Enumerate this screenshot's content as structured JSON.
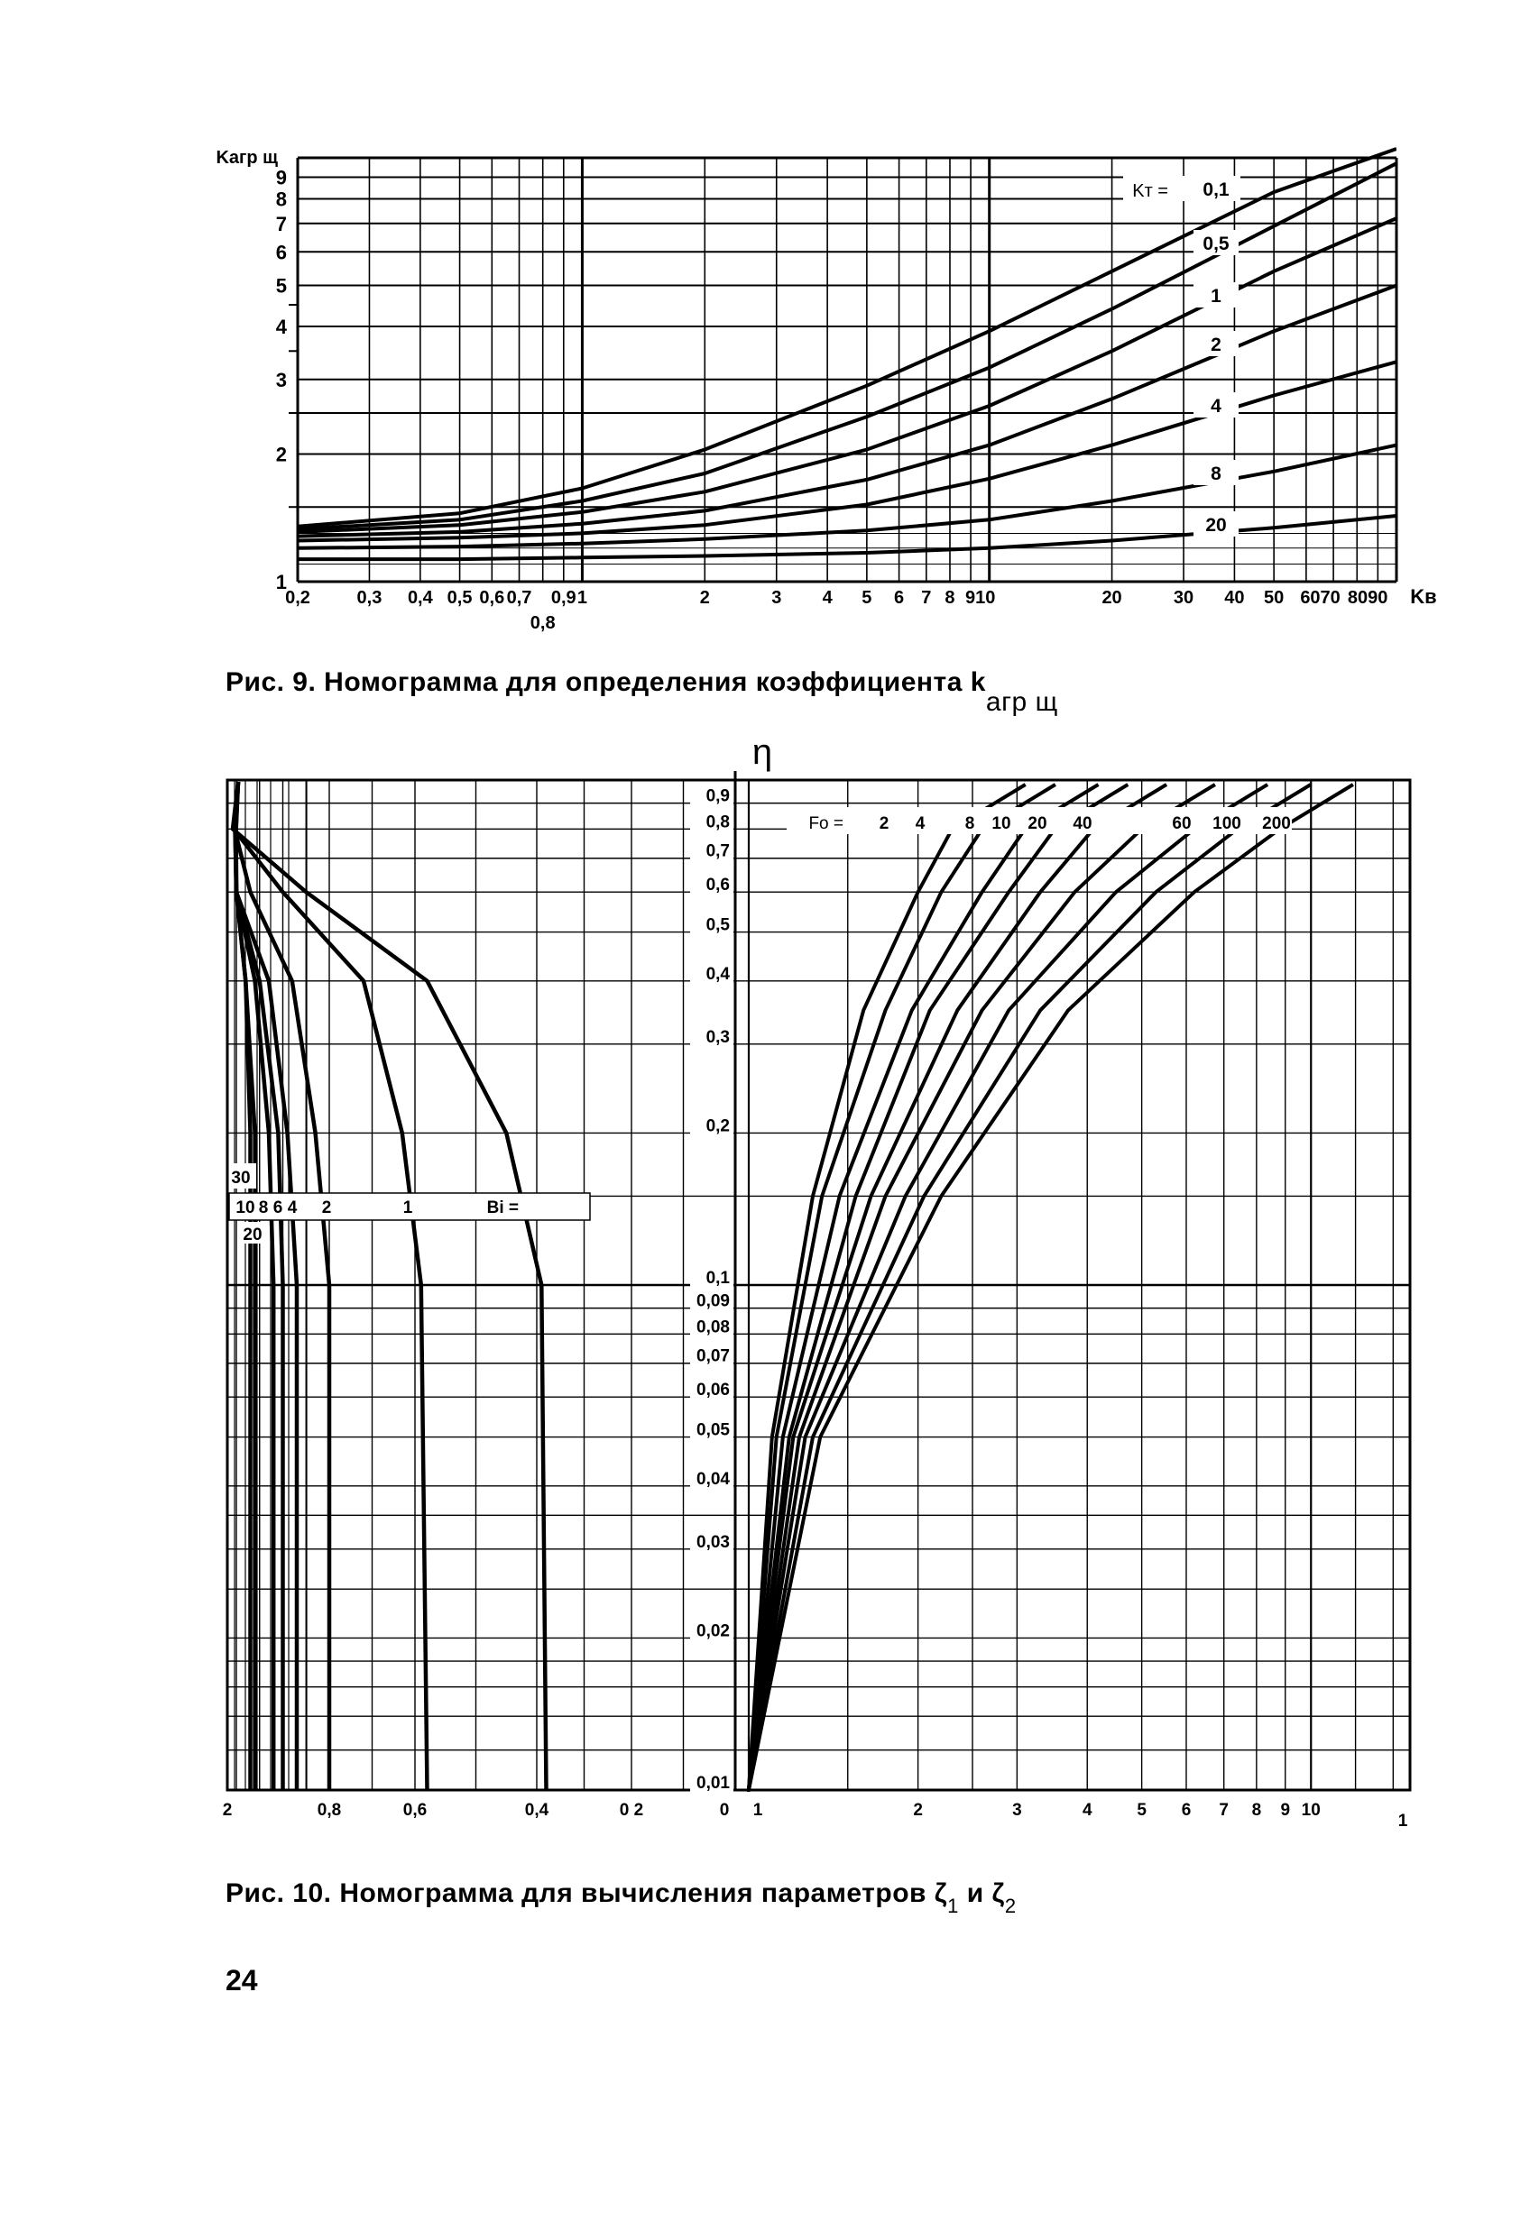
{
  "page": {
    "number": "24"
  },
  "figure9": {
    "caption_prefix": "Рис. 9.",
    "caption_text": "Номограмма для определения коэффициента k",
    "caption_sub": "агр щ"
  },
  "figure10": {
    "caption_prefix": "Рис. 10.",
    "caption_text": "Номограмма для вычисления параметров ζ",
    "caption_sub1": "1",
    "caption_mid": " и ζ",
    "caption_sub2": "2"
  },
  "chart_data": [
    {
      "type": "line",
      "xscale": "log",
      "yscale": "log",
      "xlim": [
        0.2,
        100
      ],
      "ylim": [
        1,
        10
      ],
      "ylabel": "Kагр щ",
      "xlabel": "Kв",
      "x_ticks": [
        "0,2",
        "0,3",
        "0,4",
        "0,5",
        "0,6",
        "0,7",
        "0,8",
        "0,9",
        "1",
        "2",
        "3",
        "4",
        "5",
        "6",
        "7",
        "8",
        "9",
        "10",
        "20",
        "30",
        "40",
        "50",
        "60",
        "70",
        "80",
        "90"
      ],
      "x_tick_label_text": [
        "0,2",
        "0,3",
        "0,4",
        "0,5",
        "0,6",
        "0,7",
        "0,9",
        "1",
        "0,8",
        "2",
        "3",
        "4",
        "5",
        "6",
        "7",
        "8",
        "910",
        "20",
        "30",
        "40",
        "50",
        "6070",
        "8090"
      ],
      "y_tick_labels": [
        "1",
        "2",
        "3",
        "4",
        "5",
        "6",
        "7",
        "8",
        "9"
      ],
      "legend_title": "Kт =",
      "series": [
        {
          "name": "0,1",
          "x": [
            0.2,
            0.5,
            1,
            2,
            5,
            10,
            20,
            50,
            100
          ],
          "y": [
            1.35,
            1.45,
            1.66,
            2.05,
            2.9,
            3.9,
            5.4,
            8.3,
            11.5
          ]
        },
        {
          "name": "0,5",
          "x": [
            0.2,
            0.5,
            1,
            2,
            5,
            10,
            20,
            50,
            100
          ],
          "y": [
            1.33,
            1.4,
            1.55,
            1.8,
            2.45,
            3.2,
            4.4,
            6.9,
            9.7
          ]
        },
        {
          "name": "1",
          "x": [
            0.2,
            0.5,
            1,
            2,
            5,
            10,
            20,
            50,
            100
          ],
          "y": [
            1.31,
            1.36,
            1.46,
            1.63,
            2.05,
            2.6,
            3.5,
            5.4,
            7.2
          ]
        },
        {
          "name": "2",
          "x": [
            0.2,
            0.5,
            1,
            2,
            5,
            10,
            20,
            50,
            100
          ],
          "y": [
            1.28,
            1.31,
            1.37,
            1.47,
            1.74,
            2.1,
            2.7,
            3.9,
            5.0
          ]
        },
        {
          "name": "4",
          "x": [
            0.2,
            0.5,
            1,
            2,
            5,
            10,
            20,
            50,
            100
          ],
          "y": [
            1.25,
            1.27,
            1.3,
            1.36,
            1.52,
            1.75,
            2.1,
            2.75,
            3.3
          ]
        },
        {
          "name": "8",
          "x": [
            0.2,
            0.5,
            1,
            2,
            5,
            10,
            20,
            50,
            100
          ],
          "y": [
            1.2,
            1.21,
            1.23,
            1.26,
            1.32,
            1.4,
            1.55,
            1.82,
            2.1
          ]
        },
        {
          "name": "20",
          "x": [
            0.2,
            0.5,
            1,
            2,
            5,
            10,
            20,
            50,
            100
          ],
          "y": [
            1.13,
            1.13,
            1.14,
            1.15,
            1.17,
            1.2,
            1.25,
            1.34,
            1.43
          ]
        }
      ]
    },
    {
      "type": "line",
      "yscale": "log",
      "ylim": [
        0.01,
        1
      ],
      "ylabel": "η",
      "y_tick_labels": [
        "0,9",
        "0,8",
        "0,7",
        "0,6",
        "0,5",
        "0,4",
        "0,3",
        "0,2",
        "0,1",
        "0,09",
        "0,08",
        "0,07",
        "0,06",
        "0,05",
        "0,04",
        "0,03",
        "0,02",
        "0,01"
      ],
      "left_panel": {
        "xlim": [
          2,
          0
        ],
        "x_tick_labels": [
          "2",
          "0,8",
          "0,6",
          "0,4",
          "0 2",
          "0"
        ],
        "legend_title": "Bi =",
        "legend_labels_row": [
          "10",
          "8",
          "6",
          "4",
          "2",
          "1"
        ],
        "legend_labels_extra": [
          "30",
          "20"
        ],
        "series": [
          {
            "name": "1",
            "x": [
              0.38,
              0.39,
              0.45,
              0.58,
              0.85,
              1.4
            ],
            "y": [
              0.01,
              0.1,
              0.2,
              0.4,
              0.6,
              0.8
            ]
          },
          {
            "name": "2",
            "x": [
              0.58,
              0.59,
              0.63,
              0.72,
              0.9,
              1.3
            ],
            "y": [
              0.01,
              0.1,
              0.2,
              0.4,
              0.6,
              0.8
            ]
          },
          {
            "name": "4",
            "x": [
              0.8,
              0.8,
              0.83,
              0.88,
              0.97,
              1.2
            ],
            "y": [
              0.01,
              0.1,
              0.2,
              0.4,
              0.6,
              0.8
            ]
          },
          {
            "name": "6",
            "x": [
              0.87,
              0.87,
              0.89,
              0.93,
              1.0,
              1.15
            ],
            "y": [
              0.01,
              0.1,
              0.2,
              0.4,
              0.6,
              0.8
            ]
          },
          {
            "name": "8",
            "x": [
              0.9,
              0.9,
              0.91,
              0.95,
              1.0,
              1.12
            ],
            "y": [
              0.01,
              0.1,
              0.2,
              0.4,
              0.6,
              0.8
            ]
          },
          {
            "name": "10",
            "x": [
              0.92,
              0.92,
              0.93,
              0.96,
              1.0,
              1.1
            ],
            "y": [
              0.01,
              0.1,
              0.2,
              0.4,
              0.6,
              0.8
            ]
          },
          {
            "name": "20",
            "x": [
              0.96,
              0.96,
              0.96,
              0.98,
              1.0,
              1.05
            ],
            "y": [
              0.01,
              0.1,
              0.2,
              0.4,
              0.6,
              0.8
            ]
          },
          {
            "name": "30",
            "x": [
              0.97,
              0.97,
              0.97,
              0.98,
              1.0,
              1.03
            ],
            "y": [
              0.01,
              0.1,
              0.2,
              0.4,
              0.6,
              0.8
            ]
          }
        ]
      },
      "right_panel": {
        "xscale": "log",
        "xlim": [
          1,
          10
        ],
        "x_tick_labels": [
          "0",
          "1",
          "2",
          "3",
          "4",
          "5",
          "6",
          "7",
          "8",
          "9",
          "10",
          "1"
        ],
        "legend_title": "Fo =",
        "legend_labels": [
          "2",
          "4",
          "8",
          "10",
          "20",
          "40",
          "60",
          "100",
          "200"
        ],
        "series": [
          {
            "name": "2",
            "x": [
              1,
              1.1,
              1.3,
              1.6,
              2,
              2.3
            ],
            "y": [
              0.01,
              0.05,
              0.15,
              0.35,
              0.6,
              0.8
            ]
          },
          {
            "name": "4",
            "x": [
              1,
              1.12,
              1.35,
              1.75,
              2.2,
              2.6
            ],
            "y": [
              0.01,
              0.05,
              0.15,
              0.35,
              0.6,
              0.8
            ]
          },
          {
            "name": "8",
            "x": [
              1,
              1.15,
              1.45,
              1.95,
              2.6,
              3.1
            ],
            "y": [
              0.01,
              0.05,
              0.15,
              0.35,
              0.6,
              0.8
            ]
          },
          {
            "name": "10",
            "x": [
              1,
              1.18,
              1.55,
              2.1,
              2.9,
              3.5
            ],
            "y": [
              0.01,
              0.05,
              0.15,
              0.35,
              0.6,
              0.8
            ]
          },
          {
            "name": "20",
            "x": [
              1,
              1.2,
              1.65,
              2.35,
              3.3,
              4.1
            ],
            "y": [
              0.01,
              0.05,
              0.15,
              0.35,
              0.6,
              0.8
            ]
          },
          {
            "name": "40",
            "x": [
              1,
              1.23,
              1.75,
              2.6,
              3.8,
              5.0
            ],
            "y": [
              0.01,
              0.05,
              0.15,
              0.35,
              0.6,
              0.8
            ]
          },
          {
            "name": "60",
            "x": [
              1,
              1.26,
              1.9,
              2.9,
              4.5,
              6.2
            ],
            "y": [
              0.01,
              0.05,
              0.15,
              0.35,
              0.6,
              0.8
            ]
          },
          {
            "name": "100",
            "x": [
              1,
              1.3,
              2.05,
              3.3,
              5.3,
              7.4
            ],
            "y": [
              0.01,
              0.05,
              0.15,
              0.35,
              0.6,
              0.8
            ]
          },
          {
            "name": "200",
            "x": [
              1,
              1.34,
              2.2,
              3.7,
              6.2,
              8.8
            ],
            "y": [
              0.01,
              0.05,
              0.15,
              0.35,
              0.6,
              0.8
            ]
          }
        ]
      }
    }
  ]
}
